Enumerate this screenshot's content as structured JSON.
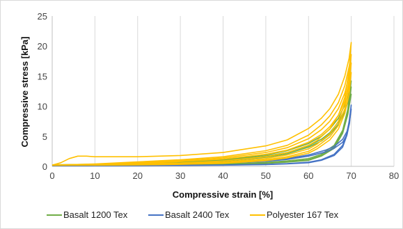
{
  "chart_data": {
    "type": "line",
    "title": "",
    "xlabel": "Compressive strain [%]",
    "ylabel": "Compressive stress [kPa]",
    "xlim": [
      0,
      80
    ],
    "ylim": [
      0,
      25
    ],
    "xticks": [
      0,
      10,
      20,
      30,
      40,
      50,
      60,
      70,
      80
    ],
    "yticks": [
      0,
      5,
      10,
      15,
      20,
      25
    ],
    "grid": "vertical",
    "legend_position": "bottom",
    "series": [
      {
        "name": "Basalt 1200 Tex",
        "color": "#70ad47",
        "curves": [
          [
            [
              0,
              0.2
            ],
            [
              10,
              0.3
            ],
            [
              20,
              0.4
            ],
            [
              30,
              0.55
            ],
            [
              40,
              0.85
            ],
            [
              50,
              1.5
            ],
            [
              55,
              2.1
            ],
            [
              60,
              3.2
            ],
            [
              63,
              4.2
            ],
            [
              65,
              5.3
            ],
            [
              67,
              7.0
            ],
            [
              68.5,
              9.0
            ],
            [
              69.5,
              11.5
            ],
            [
              70,
              14.2
            ],
            [
              69.2,
              9.5
            ],
            [
              68,
              6.0
            ],
            [
              66,
              3.5
            ],
            [
              63,
              2.0
            ],
            [
              60,
              1.3
            ],
            [
              55,
              0.9
            ],
            [
              50,
              0.65
            ],
            [
              40,
              0.4
            ],
            [
              30,
              0.3
            ],
            [
              20,
              0.22
            ],
            [
              10,
              0.18
            ],
            [
              0,
              0.15
            ]
          ],
          [
            [
              0,
              0.25
            ],
            [
              10,
              0.35
            ],
            [
              20,
              0.5
            ],
            [
              30,
              0.7
            ],
            [
              40,
              1.1
            ],
            [
              50,
              1.9
            ],
            [
              55,
              2.6
            ],
            [
              60,
              3.8
            ],
            [
              63,
              5.0
            ],
            [
              65,
              6.2
            ],
            [
              67,
              8.0
            ],
            [
              68.5,
              10.2
            ],
            [
              69.5,
              12.3
            ],
            [
              70,
              13.2
            ],
            [
              69.2,
              9.0
            ],
            [
              68,
              5.8
            ],
            [
              66,
              3.2
            ],
            [
              63,
              1.8
            ],
            [
              60,
              1.1
            ],
            [
              55,
              0.75
            ],
            [
              50,
              0.55
            ],
            [
              40,
              0.35
            ],
            [
              30,
              0.25
            ],
            [
              20,
              0.2
            ],
            [
              10,
              0.17
            ],
            [
              0,
              0.15
            ]
          ],
          [
            [
              0,
              0.2
            ],
            [
              10,
              0.3
            ],
            [
              20,
              0.45
            ],
            [
              30,
              0.65
            ],
            [
              40,
              1.0
            ],
            [
              50,
              1.7
            ],
            [
              55,
              2.3
            ],
            [
              60,
              3.4
            ],
            [
              63,
              4.5
            ],
            [
              65,
              5.6
            ],
            [
              67,
              7.4
            ],
            [
              68.5,
              9.4
            ],
            [
              69.5,
              11.2
            ],
            [
              70,
              12.0
            ],
            [
              69.2,
              8.6
            ],
            [
              68,
              5.5
            ],
            [
              66,
              3.0
            ],
            [
              63,
              1.7
            ],
            [
              60,
              1.0
            ],
            [
              55,
              0.7
            ],
            [
              50,
              0.5
            ],
            [
              40,
              0.33
            ],
            [
              30,
              0.24
            ],
            [
              20,
              0.2
            ],
            [
              10,
              0.16
            ],
            [
              0,
              0.15
            ]
          ]
        ]
      },
      {
        "name": "Basalt 2400 Tex",
        "color": "#4472c4",
        "curves": [
          [
            [
              0,
              0.15
            ],
            [
              10,
              0.2
            ],
            [
              20,
              0.3
            ],
            [
              30,
              0.4
            ],
            [
              40,
              0.55
            ],
            [
              50,
              0.85
            ],
            [
              55,
              1.15
            ],
            [
              60,
              1.7
            ],
            [
              64,
              2.4
            ],
            [
              66,
              3.0
            ],
            [
              68,
              4.0
            ],
            [
              69,
              5.3
            ],
            [
              69.6,
              7.2
            ],
            [
              70,
              10.2
            ],
            [
              69.5,
              7.5
            ],
            [
              69,
              5.5
            ],
            [
              68,
              3.5
            ],
            [
              66,
              2.0
            ],
            [
              63,
              1.1
            ],
            [
              60,
              0.7
            ],
            [
              55,
              0.45
            ],
            [
              50,
              0.32
            ],
            [
              40,
              0.22
            ],
            [
              30,
              0.17
            ],
            [
              20,
              0.14
            ],
            [
              10,
              0.12
            ],
            [
              0,
              0.1
            ]
          ],
          [
            [
              0,
              0.15
            ],
            [
              10,
              0.22
            ],
            [
              20,
              0.3
            ],
            [
              30,
              0.42
            ],
            [
              40,
              0.6
            ],
            [
              50,
              0.95
            ],
            [
              55,
              1.3
            ],
            [
              60,
              1.9
            ],
            [
              64,
              2.7
            ],
            [
              66,
              3.3
            ],
            [
              68,
              4.5
            ],
            [
              69,
              5.8
            ],
            [
              69.6,
              7.6
            ],
            [
              70,
              9.5
            ],
            [
              69.5,
              7.0
            ],
            [
              69,
              5.2
            ],
            [
              68,
              3.2
            ],
            [
              66,
              1.8
            ],
            [
              63,
              1.0
            ],
            [
              60,
              0.6
            ],
            [
              55,
              0.4
            ],
            [
              50,
              0.3
            ],
            [
              40,
              0.2
            ],
            [
              30,
              0.15
            ],
            [
              20,
              0.13
            ],
            [
              10,
              0.11
            ],
            [
              0,
              0.1
            ]
          ]
        ]
      },
      {
        "name": "Polyester 167 Tex",
        "color": "#ffc000",
        "curves": [
          [
            [
              0,
              0.2
            ],
            [
              2,
              0.6
            ],
            [
              4,
              1.3
            ],
            [
              6,
              1.7
            ],
            [
              8,
              1.7
            ],
            [
              10,
              1.6
            ],
            [
              20,
              1.6
            ],
            [
              30,
              1.8
            ],
            [
              40,
              2.3
            ],
            [
              50,
              3.4
            ],
            [
              55,
              4.4
            ],
            [
              60,
              6.3
            ],
            [
              63,
              8.0
            ],
            [
              65,
              9.6
            ],
            [
              67,
              12.0
            ],
            [
              68.5,
              15.0
            ],
            [
              69.5,
              18.0
            ],
            [
              70,
              20.6
            ],
            [
              69.5,
              16.0
            ],
            [
              68.5,
              11.5
            ],
            [
              67,
              8.5
            ],
            [
              65,
              6.2
            ],
            [
              62,
              4.3
            ],
            [
              60,
              3.5
            ],
            [
              55,
              2.3
            ],
            [
              50,
              1.6
            ],
            [
              40,
              0.9
            ],
            [
              30,
              0.55
            ],
            [
              20,
              0.4
            ],
            [
              10,
              0.3
            ],
            [
              0,
              0.25
            ]
          ],
          [
            [
              0,
              0.2
            ],
            [
              10,
              0.4
            ],
            [
              20,
              0.75
            ],
            [
              30,
              1.1
            ],
            [
              40,
              1.6
            ],
            [
              50,
              2.6
            ],
            [
              55,
              3.5
            ],
            [
              60,
              5.2
            ],
            [
              63,
              6.9
            ],
            [
              65,
              8.4
            ],
            [
              67,
              10.6
            ],
            [
              68.5,
              13.4
            ],
            [
              69.5,
              16.6
            ],
            [
              70,
              18.6
            ],
            [
              69.5,
              14.5
            ],
            [
              68.5,
              10.5
            ],
            [
              67,
              7.5
            ],
            [
              65,
              5.4
            ],
            [
              62,
              3.7
            ],
            [
              60,
              2.9
            ],
            [
              55,
              1.9
            ],
            [
              50,
              1.3
            ],
            [
              40,
              0.7
            ],
            [
              30,
              0.45
            ],
            [
              20,
              0.3
            ],
            [
              10,
              0.25
            ],
            [
              0,
              0.2
            ]
          ],
          [
            [
              0,
              0.2
            ],
            [
              10,
              0.35
            ],
            [
              20,
              0.6
            ],
            [
              30,
              0.95
            ],
            [
              40,
              1.4
            ],
            [
              50,
              2.3
            ],
            [
              55,
              3.1
            ],
            [
              60,
              4.6
            ],
            [
              63,
              6.1
            ],
            [
              65,
              7.5
            ],
            [
              67,
              9.6
            ],
            [
              68.5,
              12.2
            ],
            [
              69.5,
              15.2
            ],
            [
              70,
              17.2
            ],
            [
              69.5,
              13.2
            ],
            [
              68.5,
              9.6
            ],
            [
              67,
              6.8
            ],
            [
              65,
              4.9
            ],
            [
              62,
              3.3
            ],
            [
              60,
              2.5
            ],
            [
              55,
              1.6
            ],
            [
              50,
              1.1
            ],
            [
              40,
              0.6
            ],
            [
              30,
              0.38
            ],
            [
              20,
              0.27
            ],
            [
              10,
              0.22
            ],
            [
              0,
              0.2
            ]
          ],
          [
            [
              0,
              0.2
            ],
            [
              10,
              0.3
            ],
            [
              20,
              0.5
            ],
            [
              30,
              0.8
            ],
            [
              40,
              1.2
            ],
            [
              50,
              2.0
            ],
            [
              55,
              2.7
            ],
            [
              60,
              4.0
            ],
            [
              63,
              5.3
            ],
            [
              65,
              6.6
            ],
            [
              67,
              8.5
            ],
            [
              68.5,
              10.9
            ],
            [
              69.5,
              13.7
            ],
            [
              70,
              15.6
            ],
            [
              69.5,
              12.0
            ],
            [
              68.5,
              8.8
            ],
            [
              67,
              6.2
            ],
            [
              65,
              4.4
            ],
            [
              62,
              2.9
            ],
            [
              60,
              2.2
            ],
            [
              55,
              1.4
            ],
            [
              50,
              0.95
            ],
            [
              40,
              0.5
            ],
            [
              30,
              0.33
            ],
            [
              20,
              0.24
            ],
            [
              10,
              0.2
            ],
            [
              0,
              0.18
            ]
          ]
        ]
      }
    ]
  }
}
